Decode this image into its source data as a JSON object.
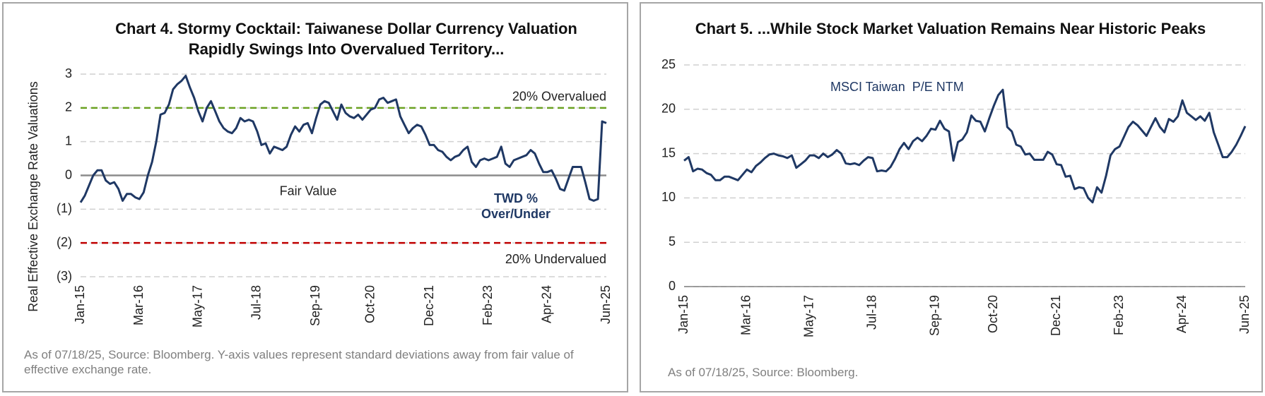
{
  "chart_data": [
    {
      "type": "line",
      "title": "Chart 4. Stormy Cocktail: Taiwanese Dollar Currency Valuation Rapidly Swings Into Overvalued Territory...",
      "y_label": "Real Effective Exchange Rate Valuations",
      "annotation": "TWD % Over/Under",
      "footnote": "As of 07/18/25, Source: Bloomberg. Y-axis values represent standard deviations away from fair value of effective exchange rate.",
      "categories": [
        "Jan-15",
        null,
        null,
        null,
        null,
        null,
        null,
        null,
        null,
        null,
        null,
        null,
        null,
        null,
        "Mar-16",
        null,
        null,
        null,
        null,
        null,
        null,
        null,
        null,
        null,
        null,
        null,
        null,
        null,
        "May-17",
        null,
        null,
        null,
        null,
        null,
        null,
        null,
        null,
        null,
        null,
        null,
        null,
        null,
        "Jul-18",
        null,
        null,
        null,
        null,
        null,
        null,
        null,
        null,
        null,
        null,
        null,
        null,
        null,
        "Sep-19",
        null,
        null,
        null,
        null,
        null,
        null,
        null,
        null,
        null,
        null,
        null,
        null,
        "Oct-20",
        null,
        null,
        null,
        null,
        null,
        null,
        null,
        null,
        null,
        null,
        null,
        null,
        null,
        "Dec-21",
        null,
        null,
        null,
        null,
        null,
        null,
        null,
        null,
        null,
        null,
        null,
        null,
        null,
        "Feb-23",
        null,
        null,
        null,
        null,
        null,
        null,
        null,
        null,
        null,
        null,
        null,
        null,
        null,
        "Apr-24",
        null,
        null,
        null,
        null,
        null,
        null,
        null,
        null,
        null,
        null,
        null,
        null,
        null,
        "Jun-25"
      ],
      "series": [
        {
          "name": "TWD % Over/Under",
          "color": "#1f3864",
          "values": [
            -0.8,
            -0.6,
            -0.3,
            0,
            0.15,
            0.15,
            -0.15,
            -0.25,
            -0.2,
            -0.4,
            -0.75,
            -0.55,
            -0.55,
            -0.65,
            -0.7,
            -0.5,
            0,
            0.4,
            1.0,
            1.8,
            1.85,
            2.1,
            2.55,
            2.7,
            2.8,
            2.95,
            2.6,
            2.3,
            1.9,
            1.6,
            2.0,
            2.2,
            1.9,
            1.6,
            1.4,
            1.3,
            1.25,
            1.4,
            1.7,
            1.6,
            1.65,
            1.6,
            1.3,
            0.9,
            0.95,
            0.65,
            0.85,
            0.8,
            0.75,
            0.85,
            1.2,
            1.45,
            1.3,
            1.5,
            1.55,
            1.25,
            1.7,
            2.1,
            2.2,
            2.15,
            1.9,
            1.65,
            2.1,
            1.85,
            1.75,
            1.7,
            1.8,
            1.65,
            1.8,
            1.95,
            2.0,
            2.25,
            2.3,
            2.15,
            2.2,
            2.25,
            1.75,
            1.5,
            1.25,
            1.4,
            1.5,
            1.45,
            1.2,
            0.9,
            0.9,
            0.75,
            0.7,
            0.55,
            0.45,
            0.55,
            0.6,
            0.75,
            0.85,
            0.4,
            0.25,
            0.45,
            0.5,
            0.45,
            0.5,
            0.55,
            0.85,
            0.35,
            0.25,
            0.45,
            0.5,
            0.55,
            0.6,
            0.75,
            0.65,
            0.35,
            0.1,
            0.1,
            0.15,
            -0.1,
            -0.4,
            -0.45,
            -0.1,
            0.25,
            0.25,
            0.25,
            -0.2,
            -0.7,
            -0.75,
            -0.7,
            1.6,
            1.55
          ]
        }
      ],
      "ylim": [
        -3,
        3
      ],
      "yticks": [
        {
          "value": -3,
          "label": "(3)"
        },
        {
          "value": -2,
          "label": "(2)"
        },
        {
          "value": -1,
          "label": "(1)"
        },
        0,
        1,
        2,
        3
      ],
      "grid": true,
      "reference_lines": [
        {
          "value": 2,
          "label": "20% Overvalued",
          "color": "#6aa121"
        },
        {
          "value": 0,
          "label": "Fair Value",
          "color": "#8c8c8c"
        },
        {
          "value": -2,
          "label": "20% Undervalued",
          "color": "#c00000"
        }
      ]
    },
    {
      "type": "line",
      "title": "Chart 5. ...While Stock Market Valuation Remains Near Historic Peaks",
      "annotation": "MSCI Taiwan  P/E NTM",
      "footnote": "As of 07/18/25, Source: Bloomberg.",
      "categories": [
        "Jan-15",
        null,
        null,
        null,
        null,
        null,
        null,
        null,
        null,
        null,
        null,
        null,
        null,
        null,
        "Mar-16",
        null,
        null,
        null,
        null,
        null,
        null,
        null,
        null,
        null,
        null,
        null,
        null,
        null,
        "May-17",
        null,
        null,
        null,
        null,
        null,
        null,
        null,
        null,
        null,
        null,
        null,
        null,
        null,
        "Jul-18",
        null,
        null,
        null,
        null,
        null,
        null,
        null,
        null,
        null,
        null,
        null,
        null,
        null,
        "Sep-19",
        null,
        null,
        null,
        null,
        null,
        null,
        null,
        null,
        null,
        null,
        null,
        null,
        "Oct-20",
        null,
        null,
        null,
        null,
        null,
        null,
        null,
        null,
        null,
        null,
        null,
        null,
        null,
        "Dec-21",
        null,
        null,
        null,
        null,
        null,
        null,
        null,
        null,
        null,
        null,
        null,
        null,
        null,
        "Feb-23",
        null,
        null,
        null,
        null,
        null,
        null,
        null,
        null,
        null,
        null,
        null,
        null,
        null,
        "Apr-24",
        null,
        null,
        null,
        null,
        null,
        null,
        null,
        null,
        null,
        null,
        null,
        null,
        null,
        "Jun-25"
      ],
      "series": [
        {
          "name": "MSCI Taiwan  P/E NTM",
          "color": "#1f3864",
          "values": [
            14.2,
            14.6,
            13.0,
            13.3,
            13.2,
            12.8,
            12.6,
            12.0,
            12.0,
            12.4,
            12.4,
            12.2,
            12.0,
            12.6,
            13.2,
            12.9,
            13.6,
            14.0,
            14.5,
            14.9,
            15.0,
            14.8,
            14.7,
            14.5,
            14.8,
            13.4,
            13.8,
            14.2,
            14.8,
            14.8,
            14.5,
            15.0,
            14.6,
            14.9,
            15.4,
            15.0,
            13.9,
            13.8,
            13.9,
            13.7,
            14.2,
            14.6,
            14.5,
            13.0,
            13.1,
            13.0,
            13.5,
            14.4,
            15.5,
            16.2,
            15.5,
            16.4,
            16.8,
            16.4,
            17.0,
            17.8,
            17.7,
            18.7,
            17.8,
            17.5,
            14.2,
            16.3,
            16.6,
            17.4,
            19.3,
            18.7,
            18.6,
            17.5,
            19.0,
            20.4,
            21.6,
            22.2,
            18.0,
            17.5,
            16.0,
            15.8,
            14.9,
            15.0,
            14.3,
            14.3,
            14.3,
            15.2,
            14.9,
            13.8,
            13.7,
            12.4,
            12.5,
            11.0,
            11.2,
            11.1,
            10.0,
            9.5,
            11.2,
            10.6,
            12.5,
            14.8,
            15.5,
            15.8,
            16.9,
            18.0,
            18.6,
            18.2,
            17.6,
            17.0,
            18.0,
            19.0,
            18.0,
            17.4,
            18.9,
            18.6,
            19.2,
            21.0,
            19.6,
            19.2,
            18.8,
            19.2,
            18.7,
            19.6,
            17.4,
            16.0,
            14.6,
            14.6,
            15.2,
            16.0,
            17.0,
            18.1
          ]
        }
      ],
      "ylim": [
        0,
        25
      ],
      "yticks": [
        0,
        5,
        10,
        15,
        20,
        25
      ],
      "grid": true
    }
  ]
}
